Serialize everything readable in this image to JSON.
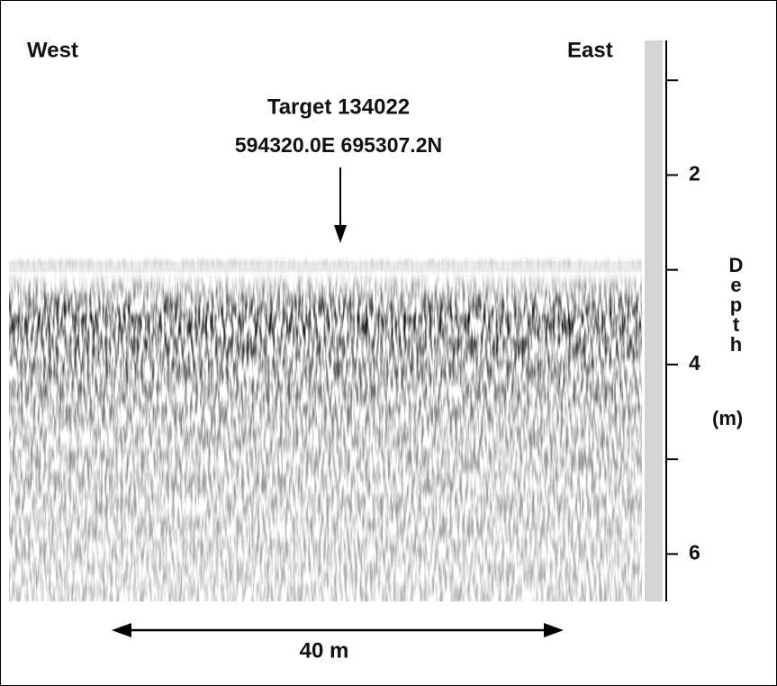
{
  "figure": {
    "left_label": "West",
    "right_label": "East",
    "target": [
      "Target 134022",
      "594320.0E 695307.2N"
    ],
    "scale_bar": "40 m",
    "depth_axis": {
      "title": "Depth",
      "unit": "(m)",
      "lim": [
        0.58,
        6.5
      ],
      "ticks": [
        2,
        4,
        6
      ],
      "minor_ticks": [
        1,
        3,
        5
      ]
    }
  }
}
